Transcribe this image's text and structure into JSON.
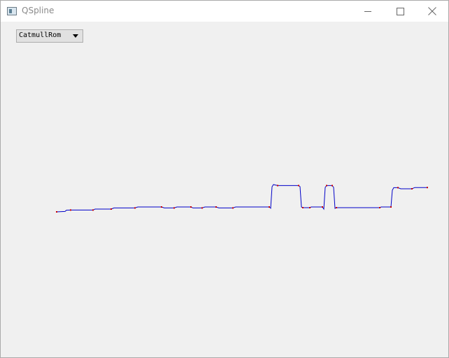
{
  "window": {
    "title": "QSpline",
    "icon": "app-window-icon",
    "controls": [
      "minimize-icon",
      "maximize-icon",
      "close-icon"
    ]
  },
  "toolbar": {
    "spline_type": "CatmullRom"
  },
  "chart_data": {
    "type": "line",
    "title": "",
    "xlabel": "",
    "ylabel": "",
    "grid": false,
    "xlim": [
      0,
      530
    ],
    "ylim": [
      0,
      40
    ],
    "series": [
      {
        "role": "curve",
        "color": "#0000c8",
        "points": [
          [
            0,
            0
          ],
          [
            12,
            0.3
          ],
          [
            14,
            1.2
          ],
          [
            20,
            1.3
          ],
          [
            52,
            1.3
          ],
          [
            55,
            2.0
          ],
          [
            78,
            2.0
          ],
          [
            82,
            2.8
          ],
          [
            112,
            2.8
          ],
          [
            116,
            3.5
          ],
          [
            150,
            3.5
          ],
          [
            154,
            2.8
          ],
          [
            168,
            2.8
          ],
          [
            172,
            3.5
          ],
          [
            192,
            3.5
          ],
          [
            195,
            2.8
          ],
          [
            208,
            2.8
          ],
          [
            212,
            3.5
          ],
          [
            228,
            3.5
          ],
          [
            232,
            2.8
          ],
          [
            252,
            2.8
          ],
          [
            256,
            3.5
          ],
          [
            304,
            3.5
          ],
          [
            306,
            2.6
          ],
          [
            308,
            18
          ],
          [
            310,
            19.5
          ],
          [
            316,
            18.8
          ],
          [
            346,
            18.8
          ],
          [
            348,
            18
          ],
          [
            350,
            3.5
          ],
          [
            352,
            3.0
          ],
          [
            362,
            3.0
          ],
          [
            364,
            3.5
          ],
          [
            380,
            3.5
          ],
          [
            382,
            2.0
          ],
          [
            384,
            17.5
          ],
          [
            386,
            18.8
          ],
          [
            394,
            18.8
          ],
          [
            396,
            17.5
          ],
          [
            398,
            2.5
          ],
          [
            400,
            3.0
          ],
          [
            462,
            3.0
          ],
          [
            464,
            3.5
          ],
          [
            478,
            3.5
          ],
          [
            480,
            15.5
          ],
          [
            482,
            17.3
          ],
          [
            488,
            17.3
          ],
          [
            492,
            16.5
          ],
          [
            508,
            16.5
          ],
          [
            512,
            17.4
          ],
          [
            530,
            17.4
          ]
        ]
      },
      {
        "role": "control-points",
        "color": "#cc0000",
        "points": [
          [
            0,
            0
          ],
          [
            20,
            1.3
          ],
          [
            52,
            1.3
          ],
          [
            78,
            2.0
          ],
          [
            112,
            2.8
          ],
          [
            150,
            3.5
          ],
          [
            168,
            2.8
          ],
          [
            192,
            3.5
          ],
          [
            208,
            2.8
          ],
          [
            228,
            3.5
          ],
          [
            252,
            2.8
          ],
          [
            304,
            3.5
          ],
          [
            316,
            18.8
          ],
          [
            346,
            18.8
          ],
          [
            352,
            3.0
          ],
          [
            362,
            3.0
          ],
          [
            380,
            3.5
          ],
          [
            386,
            18.8
          ],
          [
            394,
            18.8
          ],
          [
            400,
            3.0
          ],
          [
            462,
            3.0
          ],
          [
            478,
            3.5
          ],
          [
            488,
            17.3
          ],
          [
            508,
            16.5
          ],
          [
            530,
            17.4
          ]
        ]
      }
    ]
  }
}
